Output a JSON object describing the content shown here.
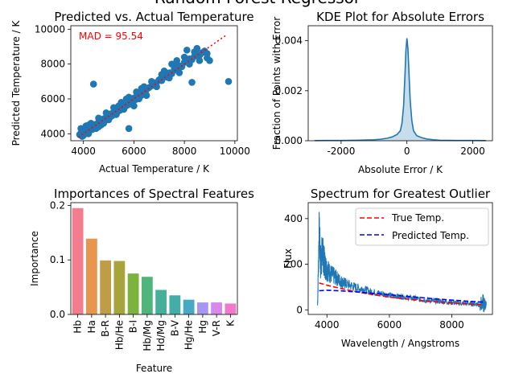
{
  "figure": {
    "suptitle": "Random Forest Regressor"
  },
  "colors": {
    "primary": "#1f77b4",
    "red": "#ff0000",
    "blue": "#0000ff"
  },
  "chart_data": [
    {
      "type": "scatter",
      "title": "Predicted vs. Actual Temperature",
      "xlabel": "Actual Temperature / K",
      "ylabel": "Predicted Temperature / K",
      "xlim": [
        3500,
        10100
      ],
      "ylim": [
        3600,
        10200
      ],
      "xticks": [
        4000,
        6000,
        8000,
        10000
      ],
      "yticks": [
        4000,
        6000,
        8000,
        10000
      ],
      "annotation": "MAD = 95.54",
      "ideal_line": {
        "x": [
          3800,
          9700
        ],
        "y": [
          3800,
          9700
        ]
      },
      "points": [
        [
          3850,
          3950
        ],
        [
          3900,
          4050
        ],
        [
          3950,
          3980
        ],
        [
          4000,
          4100
        ],
        [
          4050,
          4000
        ],
        [
          4100,
          4200
        ],
        [
          4150,
          4120
        ],
        [
          4200,
          4300
        ],
        [
          4250,
          4180
        ],
        [
          4300,
          4350
        ],
        [
          4350,
          4250
        ],
        [
          4400,
          4450
        ],
        [
          4450,
          4380
        ],
        [
          4500,
          4550
        ],
        [
          4550,
          4450
        ],
        [
          4600,
          4650
        ],
        [
          4650,
          4550
        ],
        [
          4700,
          4750
        ],
        [
          4750,
          4650
        ],
        [
          4800,
          4850
        ],
        [
          4850,
          4750
        ],
        [
          4900,
          4950
        ],
        [
          4950,
          4850
        ],
        [
          5000,
          5050
        ],
        [
          5050,
          4950
        ],
        [
          5100,
          5150
        ],
        [
          5150,
          5050
        ],
        [
          5200,
          5250
        ],
        [
          5250,
          5150
        ],
        [
          5300,
          5350
        ],
        [
          5350,
          5250
        ],
        [
          5400,
          5450
        ],
        [
          5450,
          5350
        ],
        [
          5500,
          5550
        ],
        [
          5550,
          5450
        ],
        [
          5600,
          5650
        ],
        [
          5650,
          5550
        ],
        [
          5700,
          5750
        ],
        [
          5750,
          5650
        ],
        [
          5800,
          5850
        ],
        [
          5850,
          5750
        ],
        [
          5900,
          5950
        ],
        [
          5950,
          5850
        ],
        [
          6000,
          6050
        ],
        [
          6050,
          5950
        ],
        [
          6100,
          6150
        ],
        [
          6150,
          6050
        ],
        [
          6200,
          6250
        ],
        [
          6250,
          6150
        ],
        [
          6300,
          6350
        ],
        [
          6350,
          6250
        ],
        [
          6400,
          6450
        ],
        [
          6450,
          6400
        ],
        [
          6500,
          6550
        ],
        [
          6600,
          6650
        ],
        [
          6700,
          6750
        ],
        [
          6800,
          6850
        ],
        [
          6900,
          6950
        ],
        [
          7000,
          7100
        ],
        [
          7100,
          7050
        ],
        [
          7200,
          7300
        ],
        [
          7300,
          7250
        ],
        [
          7400,
          7500
        ],
        [
          7500,
          7450
        ],
        [
          7600,
          7700
        ],
        [
          7700,
          7650
        ],
        [
          7800,
          7900
        ],
        [
          7900,
          7850
        ],
        [
          8000,
          8100
        ],
        [
          8100,
          8200
        ],
        [
          8200,
          8300
        ],
        [
          8300,
          8250
        ],
        [
          8400,
          8450
        ],
        [
          8500,
          8550
        ],
        [
          8600,
          8500
        ],
        [
          8700,
          8650
        ],
        [
          8800,
          8750
        ],
        [
          8900,
          8350
        ],
        [
          9000,
          8200
        ],
        [
          3900,
          4300
        ],
        [
          4000,
          3900
        ],
        [
          4100,
          4450
        ],
        [
          4200,
          4000
        ],
        [
          4300,
          4600
        ],
        [
          4500,
          4300
        ],
        [
          4600,
          4900
        ],
        [
          4700,
          4500
        ],
        [
          4900,
          5200
        ],
        [
          5000,
          4800
        ],
        [
          5200,
          5500
        ],
        [
          5300,
          5100
        ],
        [
          5500,
          5800
        ],
        [
          5600,
          5400
        ],
        [
          5800,
          6100
        ],
        [
          5900,
          5700
        ],
        [
          6100,
          6400
        ],
        [
          6200,
          6000
        ],
        [
          6400,
          6700
        ],
        [
          6500,
          6200
        ],
        [
          6700,
          7000
        ],
        [
          6900,
          6700
        ],
        [
          7100,
          7400
        ],
        [
          7400,
          7200
        ],
        [
          7600,
          7900
        ],
        [
          7800,
          7500
        ],
        [
          8000,
          8400
        ],
        [
          8200,
          8000
        ],
        [
          8400,
          8700
        ],
        [
          8600,
          8200
        ],
        [
          4400,
          6850
        ],
        [
          5800,
          4300
        ],
        [
          7200,
          7600
        ],
        [
          7700,
          8200
        ],
        [
          8300,
          6950
        ],
        [
          8100,
          8800
        ],
        [
          9750,
          7000
        ],
        [
          8900,
          8600
        ],
        [
          8500,
          8900
        ],
        [
          7500,
          8000
        ],
        [
          5100,
          5000
        ],
        [
          5400,
          5600
        ],
        [
          4800,
          4600
        ],
        [
          6300,
          6600
        ],
        [
          6000,
          5600
        ],
        [
          4600,
          4400
        ],
        [
          5700,
          6000
        ],
        [
          4200,
          4500
        ],
        [
          4000,
          4200
        ],
        [
          3950,
          3850
        ]
      ]
    },
    {
      "type": "area",
      "title": "KDE Plot for Absolute Errors",
      "xlabel": "Absolute Error / K",
      "ylabel": "Fraction of Points with Error",
      "xlim": [
        -3000,
        2600
      ],
      "ylim": [
        0,
        0.0046
      ],
      "xticks": [
        -2000,
        0,
        2000
      ],
      "yticks": [
        0.0,
        0.002,
        0.004
      ],
      "ytick_labels": [
        "0.000",
        "0.002",
        "0.004"
      ],
      "x": [
        -2800,
        -2500,
        -2000,
        -1500,
        -1000,
        -800,
        -600,
        -450,
        -300,
        -200,
        -150,
        -100,
        -60,
        -30,
        0,
        30,
        60,
        100,
        150,
        200,
        300,
        450,
        600,
        800,
        1000,
        1500,
        2000,
        2400
      ],
      "y": [
        5e-06,
        1e-05,
        1e-05,
        2e-05,
        4e-05,
        6e-05,
        0.0001,
        0.00015,
        0.00025,
        0.0004,
        0.0007,
        0.0014,
        0.0026,
        0.0036,
        0.0041,
        0.0037,
        0.0028,
        0.0016,
        0.0008,
        0.0004,
        0.0002,
        0.00012,
        7e-05,
        4e-05,
        2e-05,
        1e-05,
        1e-05,
        5e-06
      ]
    },
    {
      "type": "bar",
      "title": "Importances of Spectral Features",
      "xlabel": "Feature",
      "ylabel": "Importance",
      "ylim": [
        0,
        0.205
      ],
      "yticks": [
        0.0,
        0.1,
        0.2
      ],
      "ytick_labels": [
        "0.0",
        "0.1",
        "0.2"
      ],
      "categories": [
        "Hb",
        "Ha",
        "B-R",
        "Hb/He",
        "B-I",
        "Hb/Mg",
        "Hd/Mg",
        "B-V",
        "Hg/He",
        "Hg",
        "V-R",
        "K"
      ],
      "values": [
        0.195,
        0.139,
        0.099,
        0.098,
        0.075,
        0.069,
        0.045,
        0.035,
        0.027,
        0.022,
        0.022,
        0.02
      ],
      "bar_colors": [
        "#f37c8e",
        "#e8954e",
        "#c19c47",
        "#a7a43c",
        "#7bb33d",
        "#4fb57b",
        "#45b09a",
        "#43ada9",
        "#47a9c4",
        "#a996f3",
        "#d989ea",
        "#f278c8"
      ]
    },
    {
      "type": "line",
      "title": "Spectrum for Greatest Outlier",
      "xlabel": "Wavelength / Angstroms",
      "ylabel": "Flux",
      "xlim": [
        3400,
        9300
      ],
      "ylim": [
        -20,
        470
      ],
      "xticks": [
        4000,
        6000,
        8000
      ],
      "yticks": [
        0,
        200,
        400
      ],
      "legend_position": "top-right",
      "series": [
        {
          "name": "Flux",
          "style": "noisy",
          "x": [
            3700,
            3750,
            3800,
            3850,
            3900,
            3950,
            4000,
            4100,
            4200,
            4300,
            4400,
            4500,
            4600,
            4800,
            5000,
            5200,
            5400,
            5600,
            5800,
            6000,
            6200,
            6400,
            6600,
            6800,
            7000,
            7200,
            7400,
            7600,
            7800,
            8000,
            8200,
            8400,
            8600,
            8800,
            9000,
            9100
          ],
          "y": [
            20,
            350,
            200,
            260,
            220,
            190,
            180,
            160,
            150,
            140,
            130,
            120,
            115,
            105,
            95,
            90,
            80,
            75,
            70,
            65,
            60,
            58,
            55,
            50,
            45,
            42,
            40,
            38,
            35,
            33,
            30,
            28,
            27,
            26,
            25,
            20
          ],
          "spread": [
            20,
            90,
            90,
            80,
            70,
            60,
            55,
            45,
            40,
            35,
            30,
            28,
            25,
            22,
            20,
            18,
            16,
            15,
            14,
            13,
            12,
            12,
            12,
            12,
            12,
            12,
            12,
            12,
            12,
            12,
            12,
            12,
            12,
            12,
            45,
            20
          ]
        },
        {
          "name": "True Temp.",
          "style": "dashed",
          "x": [
            3750,
            4000,
            4500,
            5000,
            5500,
            6000,
            6500,
            7000,
            7500,
            8000,
            8500,
            9000
          ],
          "y": [
            118,
            108,
            92,
            78,
            66,
            56,
            48,
            41,
            35,
            30,
            26,
            22
          ]
        },
        {
          "name": "Predicted Temp.",
          "style": "dashed",
          "x": [
            3750,
            4000,
            4500,
            5000,
            5500,
            6000,
            6500,
            7000,
            7500,
            8000,
            8500,
            9000
          ],
          "y": [
            84,
            86,
            83,
            78,
            72,
            66,
            60,
            54,
            48,
            43,
            38,
            34
          ]
        }
      ]
    }
  ]
}
